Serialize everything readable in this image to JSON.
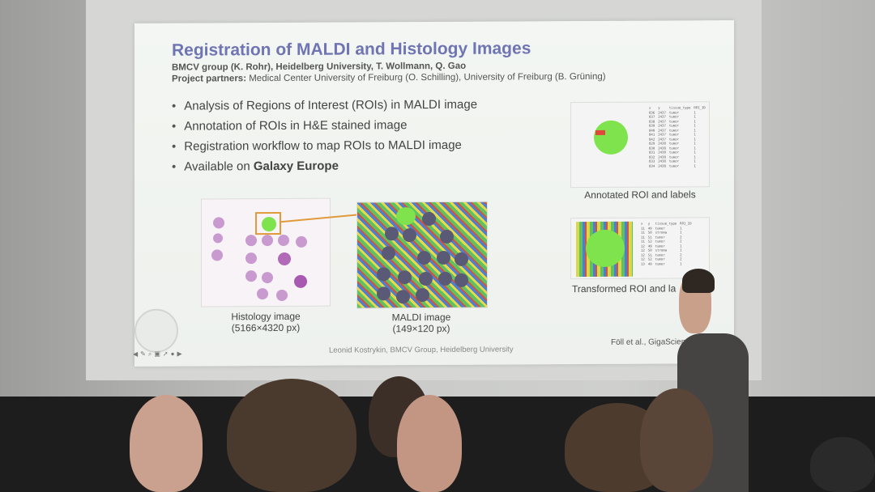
{
  "slide": {
    "title": "Registration of MALDI and Histology Images",
    "subtitle": "BMCV group (K. Rohr), Heidelberg University, T. Wollmann, Q. Gao",
    "partners_label": "Project partners:",
    "partners": " Medical Center University of Freiburg (O. Schilling), University of Freiburg (B. Grüning)",
    "bullets": [
      "Analysis of Regions of Interest (ROIs) in MALDI image",
      "Annotation of ROIs in H&E stained image",
      "Registration workflow to map ROIs to MALDI image"
    ],
    "bullet4_prefix": "Available on ",
    "bullet4_bold": "Galaxy Europe",
    "histology_caption": "Histology image",
    "histology_size": "(5166×4320 px)",
    "maldi_caption": "MALDI image",
    "maldi_size": "(149×120 px)",
    "annotated_caption": "Annotated ROI and labels",
    "transformed_caption": "Transformed ROI and la",
    "footer": "Leonid Kostrykin, BMCV Group, Heidelberg University",
    "citation": "Föll et al., GigaScience",
    "table1": {
      "headers": [
        "x",
        "y",
        "tissue_type",
        "ROI_ID"
      ],
      "rows": [
        [
          "836",
          "2437",
          "tumor",
          "1"
        ],
        [
          "837",
          "2437",
          "tumor",
          "1"
        ],
        [
          "838",
          "2437",
          "tumor",
          "1"
        ],
        [
          "839",
          "2437",
          "tumor",
          "1"
        ],
        [
          "840",
          "2437",
          "tumor",
          "1"
        ],
        [
          "841",
          "2437",
          "tumor",
          "1"
        ],
        [
          "842",
          "2437",
          "tumor",
          "1"
        ],
        [
          "829",
          "2438",
          "tumor",
          "1"
        ],
        [
          "830",
          "2438",
          "tumor",
          "1"
        ],
        [
          "831",
          "2438",
          "tumor",
          "1"
        ],
        [
          "832",
          "2438",
          "tumor",
          "1"
        ],
        [
          "833",
          "2438",
          "tumor",
          "1"
        ],
        [
          "834",
          "2438",
          "tumor",
          "1"
        ]
      ]
    },
    "table2": {
      "headers": [
        "x",
        "y",
        "tissue_type",
        "ROI_ID"
      ],
      "rows": [
        [
          "11",
          "49",
          "tumor",
          "1"
        ],
        [
          "11",
          "50",
          "stroma",
          "1"
        ],
        [
          "11",
          "51",
          "tumor",
          "2"
        ],
        [
          "11",
          "52",
          "tumor",
          "2"
        ],
        [
          "12",
          "49",
          "tumor",
          "1"
        ],
        [
          "12",
          "50",
          "stroma",
          "1"
        ],
        [
          "12",
          "51",
          "tumor",
          "2"
        ],
        [
          "12",
          "52",
          "tumor",
          "2"
        ],
        [
          "13",
          "49",
          "tumor",
          "1"
        ]
      ]
    },
    "toolbar_icons": [
      "prev-icon",
      "pen-icon",
      "zoom-icon",
      "slides-icon",
      "pointer-icon",
      "menu-icon",
      "next-icon"
    ]
  }
}
